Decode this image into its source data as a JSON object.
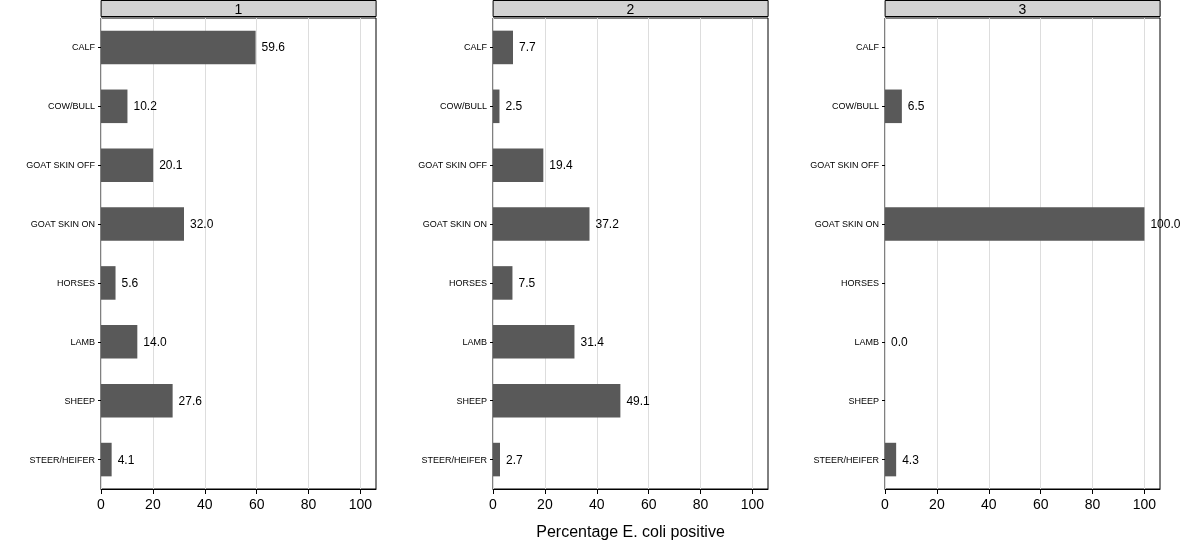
{
  "chart_data": [
    {
      "type": "bar",
      "orientation": "horizontal",
      "title": "1",
      "categories": [
        "CALF",
        "COW/BULL",
        "GOAT SKIN OFF",
        "GOAT SKIN ON",
        "HORSES",
        "LAMB",
        "SHEEP",
        "STEER/HEIFER"
      ],
      "values": [
        59.6,
        10.2,
        20.1,
        32.0,
        5.6,
        14.0,
        27.6,
        4.1
      ],
      "value_labels": [
        "59.6",
        "10.2",
        "20.1",
        "32.0",
        "5.6",
        "14.0",
        "27.6",
        "4.1"
      ],
      "color": "#595959",
      "xlim": [
        0,
        106
      ],
      "xticks": [
        0,
        20,
        40,
        60,
        80,
        100
      ],
      "grid": "x"
    },
    {
      "type": "bar",
      "orientation": "horizontal",
      "title": "2",
      "xlabel": "Percentage E. coli positive",
      "categories": [
        "CALF",
        "COW/BULL",
        "GOAT SKIN OFF",
        "GOAT SKIN ON",
        "HORSES",
        "LAMB",
        "SHEEP",
        "STEER/HEIFER"
      ],
      "values": [
        7.7,
        2.5,
        19.4,
        37.2,
        7.5,
        31.4,
        49.1,
        2.7
      ],
      "value_labels": [
        "7.7",
        "2.5",
        "19.4",
        "37.2",
        "7.5",
        "31.4",
        "49.1",
        "2.7"
      ],
      "color": "#595959",
      "xlim": [
        0,
        106
      ],
      "xticks": [
        0,
        20,
        40,
        60,
        80,
        100
      ],
      "grid": "x"
    },
    {
      "type": "bar",
      "orientation": "horizontal",
      "title": "3",
      "categories": [
        "CALF",
        "COW/BULL",
        "GOAT SKIN OFF",
        "GOAT SKIN ON",
        "HORSES",
        "LAMB",
        "SHEEP",
        "STEER/HEIFER"
      ],
      "values": [
        null,
        6.5,
        null,
        100.0,
        null,
        0.0,
        null,
        4.3
      ],
      "value_labels": [
        null,
        "6.5",
        null,
        "100.0",
        null,
        "0.0",
        null,
        "4.3"
      ],
      "color": "#595959",
      "xlim": [
        0,
        106
      ],
      "xticks": [
        0,
        20,
        40,
        60,
        80,
        100
      ],
      "grid": "x"
    }
  ]
}
